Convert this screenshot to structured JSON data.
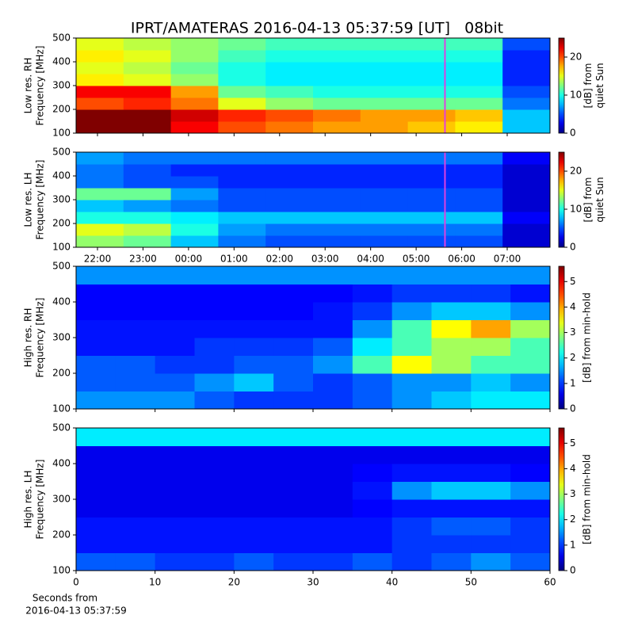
{
  "title": "IPRT/AMATERAS 2016-04-13 05:37:59 [UT]   08bit",
  "chart_data": [
    {
      "type": "heatmap",
      "ylabel": [
        "Low res. RH",
        "Frequency [MHz]"
      ],
      "colorbar_label": [
        "[dB] from",
        "quiet Sun"
      ],
      "xlim": [
        21.53,
        31.94
      ],
      "ylim": [
        100,
        500
      ],
      "yticks": [
        100,
        200,
        300,
        400,
        500
      ],
      "clim": [
        0,
        25
      ],
      "cticks": [
        0,
        10,
        20
      ],
      "marker_x": 29.633,
      "marker_color": "#e040e0",
      "z": [
        [
          25,
          25,
          22,
          20,
          19,
          18,
          18,
          17,
          16,
          8
        ],
        [
          25,
          25,
          23,
          21,
          20,
          19,
          18,
          18,
          17,
          8
        ],
        [
          20,
          21,
          19,
          15,
          13,
          12,
          12,
          12,
          12,
          6
        ],
        [
          22,
          22,
          18,
          12,
          11,
          10,
          10,
          10,
          10,
          5
        ],
        [
          16,
          15,
          13,
          10,
          9,
          9,
          9,
          9,
          9,
          4
        ],
        [
          15,
          14,
          12,
          10,
          9,
          9,
          9,
          9,
          9,
          4
        ],
        [
          16,
          15,
          13,
          11,
          10,
          10,
          10,
          10,
          10,
          4
        ],
        [
          15,
          14,
          13,
          12,
          11,
          11,
          11,
          11,
          11,
          5
        ]
      ]
    },
    {
      "type": "heatmap",
      "ylabel": [
        "Low res. LH",
        "Frequency [MHz]"
      ],
      "colorbar_label": [
        "[dB] from",
        "quiet Sun"
      ],
      "xlim": [
        21.53,
        31.94
      ],
      "ylim": [
        100,
        500
      ],
      "yticks": [
        100,
        200,
        300,
        400,
        500
      ],
      "xticks": [
        {
          "value": 22,
          "label": "22:00"
        },
        {
          "value": 23,
          "label": "23:00"
        },
        {
          "value": 24,
          "label": "00:00"
        },
        {
          "value": 25,
          "label": "01:00"
        },
        {
          "value": 26,
          "label": "02:00"
        },
        {
          "value": 27,
          "label": "03:00"
        },
        {
          "value": 28,
          "label": "04:00"
        },
        {
          "value": 29,
          "label": "05:00"
        },
        {
          "value": 30,
          "label": "06:00"
        },
        {
          "value": 31,
          "label": "07:00"
        }
      ],
      "clim": [
        0,
        25
      ],
      "cticks": [
        0,
        10,
        20
      ],
      "marker_x": 29.633,
      "marker_color": "#e040e0",
      "z": [
        [
          13,
          12,
          8,
          6,
          5,
          5,
          5,
          5,
          5,
          2
        ],
        [
          15,
          14,
          10,
          7,
          6,
          6,
          6,
          6,
          6,
          2
        ],
        [
          10,
          10,
          9,
          8,
          8,
          8,
          8,
          8,
          8,
          3
        ],
        [
          8,
          7,
          6,
          5,
          5,
          5,
          5,
          5,
          5,
          2
        ],
        [
          12,
          12,
          7,
          5,
          5,
          5,
          5,
          5,
          5,
          2
        ],
        [
          6,
          5,
          5,
          4,
          4,
          4,
          4,
          4,
          4,
          2
        ],
        [
          6,
          5,
          4,
          4,
          4,
          4,
          4,
          4,
          4,
          2
        ],
        [
          7,
          6,
          6,
          6,
          6,
          6,
          6,
          6,
          6,
          3
        ]
      ]
    },
    {
      "type": "heatmap",
      "ylabel": [
        "High res. RH",
        "Frequency [MHz]"
      ],
      "colorbar_label": [
        "[dB] from min-hold"
      ],
      "xlim": [
        0,
        60
      ],
      "ylim": [
        100,
        500
      ],
      "yticks": [
        100,
        200,
        300,
        400,
        500
      ],
      "clim": [
        0,
        5.6
      ],
      "cticks": [
        0,
        1,
        2,
        3,
        4,
        5
      ],
      "z": [
        [
          1.5,
          1.5,
          1.5,
          1.2,
          1.0,
          1.0,
          1.0,
          1.2,
          1.5,
          1.8,
          2.0,
          2.0
        ],
        [
          1.2,
          1.2,
          1.2,
          1.5,
          1.8,
          1.2,
          1.0,
          1.2,
          1.5,
          1.5,
          1.8,
          1.5
        ],
        [
          1.2,
          1.2,
          1.0,
          1.0,
          1.2,
          1.2,
          1.5,
          2.5,
          3.5,
          3.0,
          2.5,
          2.5
        ],
        [
          0.8,
          0.8,
          0.8,
          1.0,
          1.0,
          1.0,
          1.2,
          2.0,
          2.5,
          3.0,
          3.0,
          2.5
        ],
        [
          0.8,
          0.8,
          0.8,
          0.8,
          0.8,
          0.8,
          0.8,
          1.5,
          2.5,
          3.5,
          4.0,
          3.0
        ],
        [
          0.7,
          0.7,
          0.7,
          0.7,
          0.7,
          0.7,
          0.8,
          1.0,
          1.5,
          1.8,
          1.8,
          1.5
        ],
        [
          0.7,
          0.7,
          0.7,
          0.7,
          0.7,
          0.7,
          0.7,
          0.8,
          1.0,
          1.0,
          1.0,
          0.8
        ],
        [
          1.5,
          1.5,
          1.5,
          1.5,
          1.5,
          1.5,
          1.5,
          1.5,
          1.5,
          1.5,
          1.5,
          1.5
        ]
      ]
    },
    {
      "type": "heatmap",
      "ylabel": [
        "High res. LH",
        "Frequency [MHz]"
      ],
      "colorbar_label": [
        "[dB] from min-hold"
      ],
      "xlabel": [
        "Seconds from",
        "2016-04-13 05:37:59"
      ],
      "xlim": [
        0,
        60
      ],
      "xticks": [
        0,
        10,
        20,
        30,
        40,
        50,
        60
      ],
      "ylim": [
        100,
        500
      ],
      "yticks": [
        100,
        200,
        300,
        400,
        500
      ],
      "clim": [
        0,
        5.6
      ],
      "cticks": [
        0,
        1,
        2,
        3,
        4,
        5
      ],
      "z": [
        [
          1.2,
          1.2,
          1.0,
          1.0,
          1.2,
          1.0,
          1.0,
          1.2,
          1.0,
          1.2,
          1.5,
          1.2
        ],
        [
          0.8,
          0.8,
          0.8,
          0.8,
          0.8,
          0.8,
          0.8,
          0.8,
          1.0,
          1.0,
          1.0,
          1.0
        ],
        [
          0.8,
          0.8,
          0.8,
          0.8,
          0.8,
          0.8,
          0.8,
          0.8,
          1.0,
          1.2,
          1.2,
          1.0
        ],
        [
          0.6,
          0.6,
          0.6,
          0.6,
          0.6,
          0.6,
          0.6,
          0.7,
          0.8,
          0.8,
          0.8,
          0.8
        ],
        [
          0.6,
          0.6,
          0.6,
          0.6,
          0.6,
          0.6,
          0.6,
          0.8,
          1.5,
          1.8,
          1.8,
          1.5
        ],
        [
          0.6,
          0.6,
          0.6,
          0.6,
          0.6,
          0.6,
          0.6,
          0.7,
          0.8,
          0.8,
          0.8,
          0.7
        ],
        [
          0.6,
          0.6,
          0.6,
          0.6,
          0.6,
          0.6,
          0.6,
          0.6,
          0.6,
          0.6,
          0.6,
          0.6
        ],
        [
          2.0,
          2.0,
          2.0,
          2.0,
          2.0,
          2.0,
          2.0,
          2.0,
          2.0,
          2.0,
          2.0,
          2.0
        ]
      ]
    }
  ]
}
